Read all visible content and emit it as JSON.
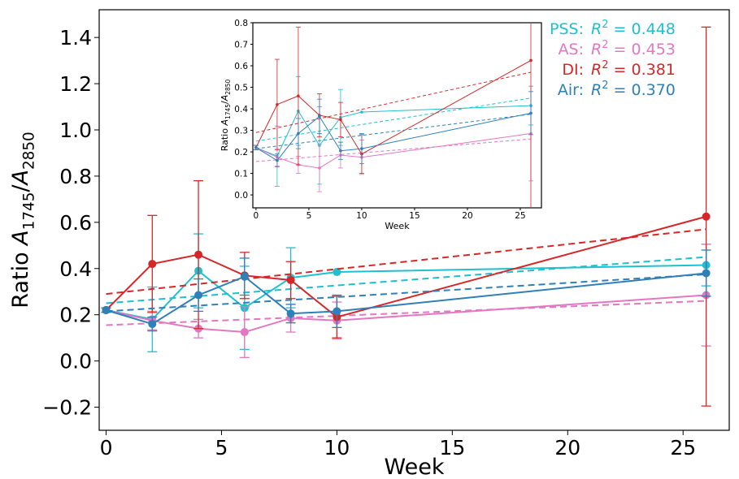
{
  "chart_data": [
    {
      "type": "line",
      "panel": "main",
      "xlabel": "Week",
      "ylabel_prefix": "Ratio ",
      "ylabel_math": {
        "base": "A",
        "sub1": "1745",
        "sep": "/",
        "base2": "A",
        "sub2": "2850"
      },
      "xlim": [
        -0.3,
        27
      ],
      "ylim": [
        -0.3,
        1.52
      ],
      "xticks": [
        0,
        5,
        10,
        15,
        20,
        25
      ],
      "yticks": [
        -0.2,
        0.0,
        0.2,
        0.4,
        0.6,
        0.8,
        1.0,
        1.2,
        1.4
      ],
      "xtick_labels": [
        "0",
        "5",
        "10",
        "15",
        "20",
        "25"
      ],
      "ytick_labels": [
        "−0.2",
        "0.0",
        "0.2",
        "0.4",
        "0.6",
        "0.8",
        "1.0",
        "1.2",
        "1.4"
      ],
      "grid": false,
      "series": [
        {
          "key": "PSS",
          "color": "#1ec0d0",
          "x": [
            0,
            2,
            4,
            6,
            8,
            10,
            26
          ],
          "y": [
            0.22,
            0.18,
            0.39,
            0.23,
            0.36,
            0.385,
            0.415
          ],
          "err": [
            0.01,
            0.14,
            0.16,
            0.18,
            0.13,
            0.0,
            0.09
          ],
          "fit": {
            "x": [
              0,
              26
            ],
            "y": [
              0.25,
              0.45
            ]
          }
        },
        {
          "key": "AS",
          "color": "#e377c2",
          "x": [
            0,
            2,
            4,
            6,
            8,
            10,
            26
          ],
          "y": [
            0.22,
            0.175,
            0.14,
            0.125,
            0.185,
            0.175,
            0.285
          ],
          "err": [
            0.01,
            0.04,
            0.04,
            0.11,
            0.06,
            0.08,
            0.22
          ],
          "fit": {
            "x": [
              0,
              26
            ],
            "y": [
              0.155,
              0.26
            ]
          }
        },
        {
          "key": "DI",
          "color": "#d62728",
          "x": [
            0,
            2,
            4,
            6,
            8,
            10,
            26
          ],
          "y": [
            0.22,
            0.42,
            0.46,
            0.37,
            0.35,
            0.19,
            0.625
          ],
          "err": [
            0.01,
            0.21,
            0.32,
            0.1,
            0.08,
            0.09,
            0.82
          ],
          "fit": {
            "x": [
              0,
              26
            ],
            "y": [
              0.29,
              0.57
            ]
          }
        },
        {
          "key": "Air",
          "color": "#2f7fb8",
          "x": [
            0,
            2,
            4,
            6,
            8,
            10,
            26
          ],
          "y": [
            0.22,
            0.16,
            0.285,
            0.365,
            0.205,
            0.215,
            0.38
          ],
          "err": [
            0.01,
            0.03,
            0.07,
            0.08,
            0.04,
            0.07,
            0.1
          ],
          "fit": {
            "x": [
              0,
              26
            ],
            "y": [
              0.215,
              0.375
            ]
          }
        }
      ]
    },
    {
      "type": "line",
      "panel": "inset",
      "xlabel": "Week",
      "ylabel_prefix": "Ratio ",
      "ylabel_math": {
        "base": "A",
        "sub1": "1745",
        "sep": "/",
        "base2": "A",
        "sub2": "2850"
      },
      "xlim": [
        -0.3,
        27
      ],
      "ylim": [
        -0.06,
        0.8
      ],
      "xticks": [
        0,
        5,
        10,
        15,
        20,
        25
      ],
      "yticks": [
        0.0,
        0.1,
        0.2,
        0.3,
        0.4,
        0.5,
        0.6,
        0.7,
        0.8
      ],
      "xtick_labels": [
        "0",
        "5",
        "10",
        "15",
        "20",
        "25"
      ],
      "ytick_labels": [
        "0.0",
        "0.1",
        "0.2",
        "0.3",
        "0.4",
        "0.5",
        "0.6",
        "0.7",
        "0.8"
      ],
      "grid": false
    }
  ],
  "legend": {
    "placement": "top-right",
    "entries": [
      {
        "label": "PSS:",
        "r2_symbol": "R",
        "r2_exp": "2",
        "r2_value": " = 0.448",
        "color": "#1ec0d0"
      },
      {
        "label": "AS:",
        "r2_symbol": "R",
        "r2_exp": "2",
        "r2_value": " = 0.453",
        "color": "#e377c2"
      },
      {
        "label": "DI:",
        "r2_symbol": "R",
        "r2_exp": "2",
        "r2_value": " = 0.381",
        "color": "#d62728"
      },
      {
        "label": "Air:",
        "r2_symbol": "R",
        "r2_exp": "2",
        "r2_value": " = 0.370",
        "color": "#2f7fb8"
      }
    ]
  }
}
